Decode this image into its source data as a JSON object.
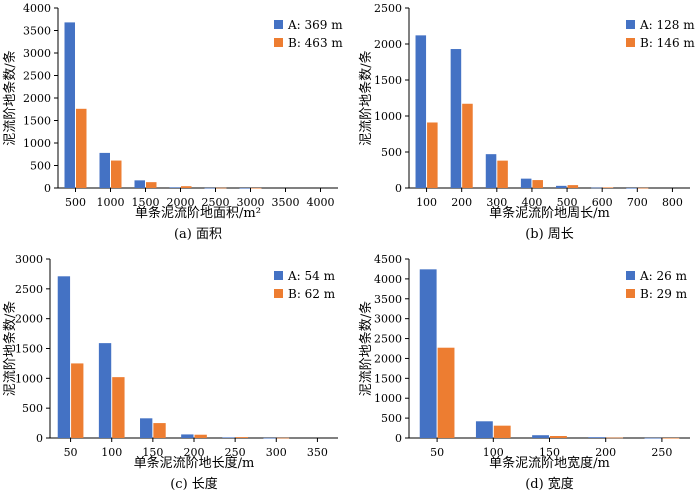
{
  "colors": {
    "A": "#4472C4",
    "B": "#ED7D31",
    "axis": "#000000"
  },
  "chart_data": [
    {
      "type": "bar",
      "caption": "(a) 面积",
      "xlabel": "单条泥流阶地面积/m²",
      "ylabel": "泥流阶地条数/条",
      "categories": [
        "500",
        "1000",
        "1500",
        "2000",
        "2500",
        "3000",
        "3500",
        "4000"
      ],
      "ylim": [
        0,
        4000
      ],
      "yticks": [
        0,
        500,
        1000,
        1500,
        2000,
        2500,
        3000,
        3500,
        4000
      ],
      "legend": "top-right",
      "series": [
        {
          "name": "A: 369 m",
          "values": [
            3680,
            780,
            170,
            15,
            3,
            1,
            0,
            0
          ]
        },
        {
          "name": "B: 463 m",
          "values": [
            1760,
            610,
            130,
            40,
            5,
            2,
            0,
            0
          ]
        }
      ]
    },
    {
      "type": "bar",
      "caption": "(b) 周长",
      "xlabel": "单条泥流阶地周长/m",
      "ylabel": "泥流阶地条数/条",
      "categories": [
        "100",
        "200",
        "300",
        "400",
        "500",
        "600",
        "700",
        "800"
      ],
      "ylim": [
        0,
        2500
      ],
      "yticks": [
        0,
        500,
        1000,
        1500,
        2000,
        2500
      ],
      "legend": "top-right",
      "series": [
        {
          "name": "A: 128 m",
          "values": [
            2120,
            1930,
            470,
            130,
            30,
            5,
            1,
            0
          ]
        },
        {
          "name": "B: 146 m",
          "values": [
            910,
            1170,
            380,
            110,
            40,
            8,
            2,
            0
          ]
        }
      ]
    },
    {
      "type": "bar",
      "caption": "(c) 长度",
      "xlabel": "单条泥流阶地长度/m",
      "ylabel": "泥流阶地条数/条",
      "categories": [
        "50",
        "100",
        "150",
        "200",
        "250",
        "300",
        "350"
      ],
      "ylim": [
        0,
        3000
      ],
      "yticks": [
        0,
        500,
        1000,
        1500,
        2000,
        2500,
        3000
      ],
      "legend": "top-right",
      "series": [
        {
          "name": "A: 54 m",
          "values": [
            2710,
            1590,
            330,
            60,
            10,
            2,
            0
          ]
        },
        {
          "name": "B: 62 m",
          "values": [
            1250,
            1020,
            250,
            55,
            15,
            3,
            0
          ]
        }
      ]
    },
    {
      "type": "bar",
      "caption": "(d) 宽度",
      "xlabel": "单条泥流阶地宽度/m",
      "ylabel": "泥流阶地条数/条",
      "categories": [
        "50",
        "100",
        "150",
        "200",
        "250"
      ],
      "ylim": [
        0,
        4500
      ],
      "yticks": [
        0,
        500,
        1000,
        1500,
        2000,
        2500,
        3000,
        3500,
        4000,
        4500
      ],
      "legend": "top-right",
      "series": [
        {
          "name": "A: 26 m",
          "values": [
            4240,
            420,
            70,
            20,
            3
          ]
        },
        {
          "name": "B: 29 m",
          "values": [
            2270,
            310,
            50,
            10,
            2
          ]
        }
      ]
    }
  ]
}
